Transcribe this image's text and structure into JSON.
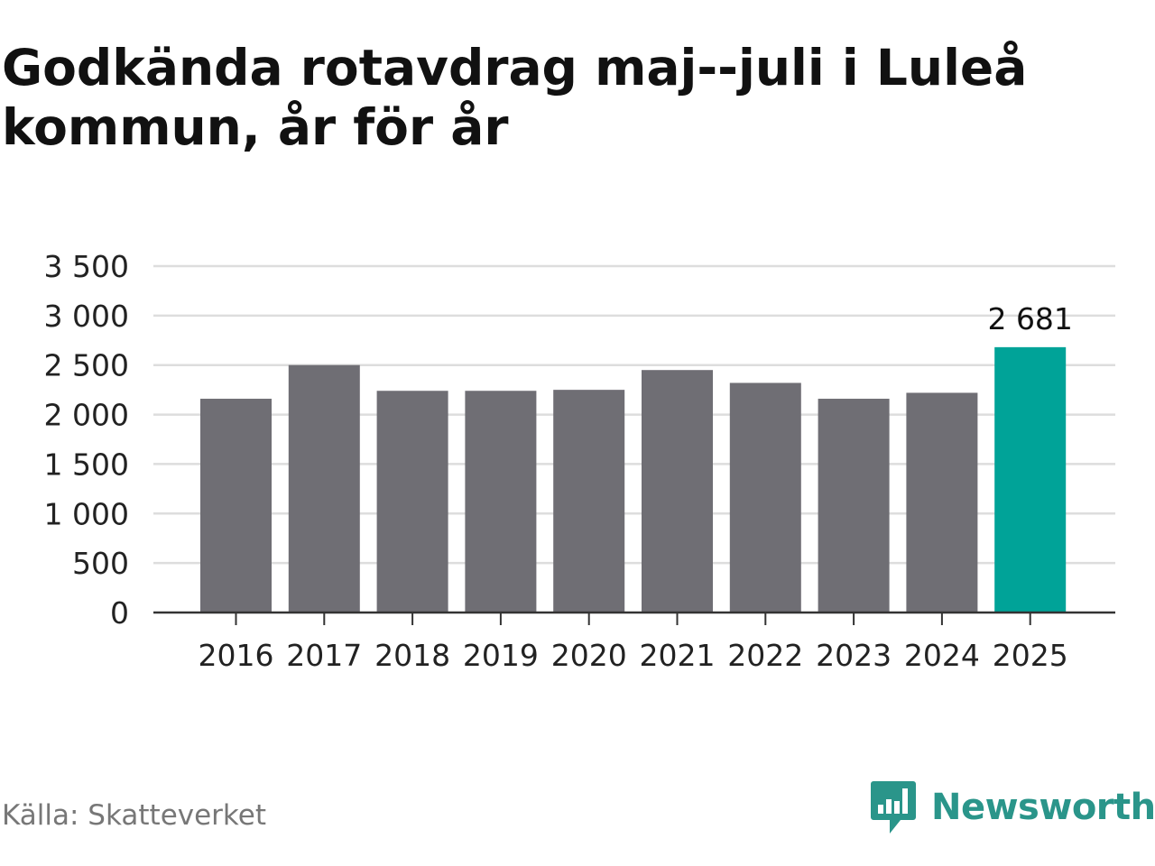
{
  "chart_data": {
    "type": "bar",
    "title": "Godkända rotavdrag maj--juli i Luleå kommun, år för år",
    "categories": [
      "2016",
      "2017",
      "2018",
      "2019",
      "2020",
      "2021",
      "2022",
      "2023",
      "2024",
      "2025"
    ],
    "values": [
      2160,
      2500,
      2240,
      2240,
      2250,
      2450,
      2320,
      2160,
      2220,
      2681
    ],
    "highlight_index": 9,
    "highlight_label": "2 681",
    "ylim": [
      0,
      3500
    ],
    "yticks": [
      0,
      500,
      1000,
      1500,
      2000,
      2500,
      3000,
      3500
    ],
    "ytick_labels": [
      "0",
      "500",
      "1 000",
      "1 500",
      "2 000",
      "2 500",
      "3 000",
      "3 500"
    ],
    "grid": true,
    "xlabel": "",
    "ylabel": "",
    "colors": {
      "bar": "#6f6e74",
      "highlight": "#00a398",
      "grid": "#dddddd",
      "axis": "#333333"
    }
  },
  "source": "Källa: Skatteverket",
  "brand": {
    "name": "Newsworthy",
    "icon": "newsworthy-logo-icon",
    "color": "#2a958a"
  }
}
